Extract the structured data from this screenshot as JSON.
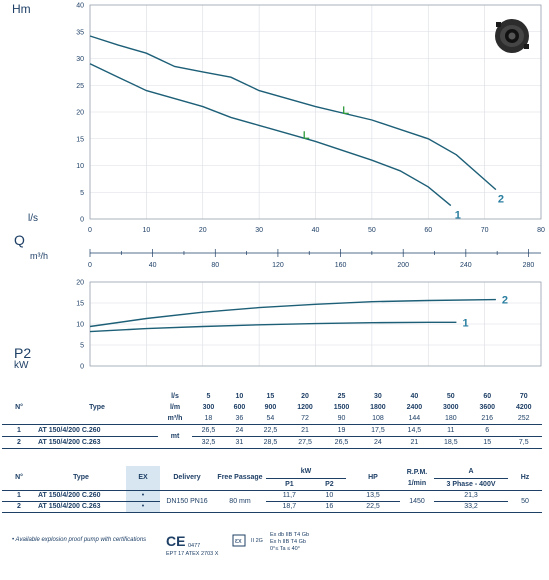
{
  "labels": {
    "hm": "Hm",
    "ls": "l/s",
    "q": "Q",
    "m3h": "m³/h",
    "p2": "P2",
    "kw": "kW"
  },
  "chart_data": [
    {
      "type": "line",
      "ylabel": "Hm",
      "xlabel": "l/s",
      "xlim": [
        0,
        80
      ],
      "ylim": [
        0,
        40
      ],
      "xticks": [
        0,
        10,
        20,
        30,
        40,
        50,
        60,
        70,
        80
      ],
      "yticks": [
        0,
        5,
        10,
        15,
        20,
        25,
        30,
        35,
        40
      ],
      "secondary_x": {
        "label": "m³/h",
        "ticks": [
          0,
          40,
          80,
          120,
          160,
          200,
          240,
          280
        ],
        "lim": [
          0,
          288
        ]
      },
      "grid": true,
      "series": [
        {
          "name": "1",
          "x": [
            0,
            5,
            10,
            15,
            20,
            25,
            30,
            40,
            50,
            55,
            60,
            64
          ],
          "y": [
            29,
            26.5,
            24,
            22.5,
            21,
            19,
            17.5,
            14.5,
            11,
            9,
            6,
            2.5
          ]
        },
        {
          "name": "2",
          "x": [
            0,
            5,
            10,
            15,
            20,
            25,
            30,
            40,
            50,
            60,
            65,
            72
          ],
          "y": [
            34.2,
            32.5,
            31,
            28.5,
            27.5,
            26.5,
            24,
            21,
            18.5,
            15,
            12,
            5.5
          ]
        }
      ]
    },
    {
      "type": "line",
      "ylabel": "P2",
      "xlabel": "",
      "xlim": [
        0,
        80
      ],
      "ylim": [
        0,
        20
      ],
      "yticks": [
        0,
        5,
        10,
        15,
        20
      ],
      "grid": true,
      "series": [
        {
          "name": "1",
          "x": [
            0,
            10,
            20,
            30,
            40,
            50,
            60,
            65
          ],
          "y": [
            8.2,
            8.9,
            9.4,
            9.8,
            10.1,
            10.3,
            10.4,
            10.4
          ]
        },
        {
          "name": "2",
          "x": [
            0,
            10,
            20,
            30,
            40,
            50,
            60,
            72
          ],
          "y": [
            9.4,
            11.3,
            12.8,
            13.9,
            14.7,
            15.3,
            15.6,
            15.8
          ]
        }
      ]
    }
  ],
  "table1": {
    "head_n": "N°",
    "head_type": "Type",
    "units": [
      "l/s",
      "l/m",
      "m³/h"
    ],
    "cols": [
      [
        "5",
        "300",
        "18"
      ],
      [
        "10",
        "600",
        "36"
      ],
      [
        "15",
        "900",
        "54"
      ],
      [
        "20",
        "1200",
        "72"
      ],
      [
        "25",
        "1500",
        "90"
      ],
      [
        "30",
        "1800",
        "108"
      ],
      [
        "40",
        "2400",
        "144"
      ],
      [
        "50",
        "3000",
        "180"
      ],
      [
        "60",
        "3600",
        "216"
      ],
      [
        "70",
        "4200",
        "252"
      ]
    ],
    "unit_mt": "mt",
    "rows": [
      {
        "n": "1",
        "type": "AT 150/4/200 C.260",
        "vals": [
          "26,5",
          "24",
          "22,5",
          "21",
          "19",
          "17,5",
          "14,5",
          "11",
          "6",
          ""
        ]
      },
      {
        "n": "2",
        "type": "AT 150/4/200 C.263",
        "vals": [
          "32,5",
          "31",
          "28,5",
          "27,5",
          "26,5",
          "24",
          "21",
          "18,5",
          "15",
          "7,5"
        ]
      }
    ]
  },
  "table2": {
    "h_n": "N°",
    "h_type": "Type",
    "h_ex": "EX",
    "h_delivery": "Delivery",
    "h_free": "Free Passage",
    "h_kw": "kW",
    "h_p1": "P1",
    "h_p2": "P2",
    "h_hp": "HP",
    "h_rpm": "R.P.M.",
    "h_rpm2": "1/min",
    "h_a": "A",
    "h_phase": "3 Phase - 400V",
    "h_hz": "Hz",
    "delivery": "DN150 PN16",
    "free": "80 mm",
    "rpm": "1450",
    "hz": "50",
    "rows": [
      {
        "n": "1",
        "type": "AT 150/4/200 C.260",
        "ex": "•",
        "p1": "11,7",
        "p2": "10",
        "hp": "13,5",
        "a": "21,3"
      },
      {
        "n": "2",
        "type": "AT 150/4/200 C.263",
        "ex": "•",
        "p1": "18,7",
        "p2": "16",
        "hp": "22,5",
        "a": "33,2"
      }
    ]
  },
  "footer": {
    "note": "• Available explosion proof pump with certifications",
    "ce": "CE",
    "ce_num": "0477",
    "ept": "EPT 17 ATEX 2703 X",
    "ii2g": "II 2G",
    "ex1": "Ex db IIB T4 Gb",
    "ex2": "Ex h IIB T4 Gb",
    "ta": "0°≤ Ta ≤ 40°"
  },
  "colors": {
    "curve": "#1d5f77",
    "text": "#1e3f66",
    "ex_bg": "#d8e6f1"
  }
}
